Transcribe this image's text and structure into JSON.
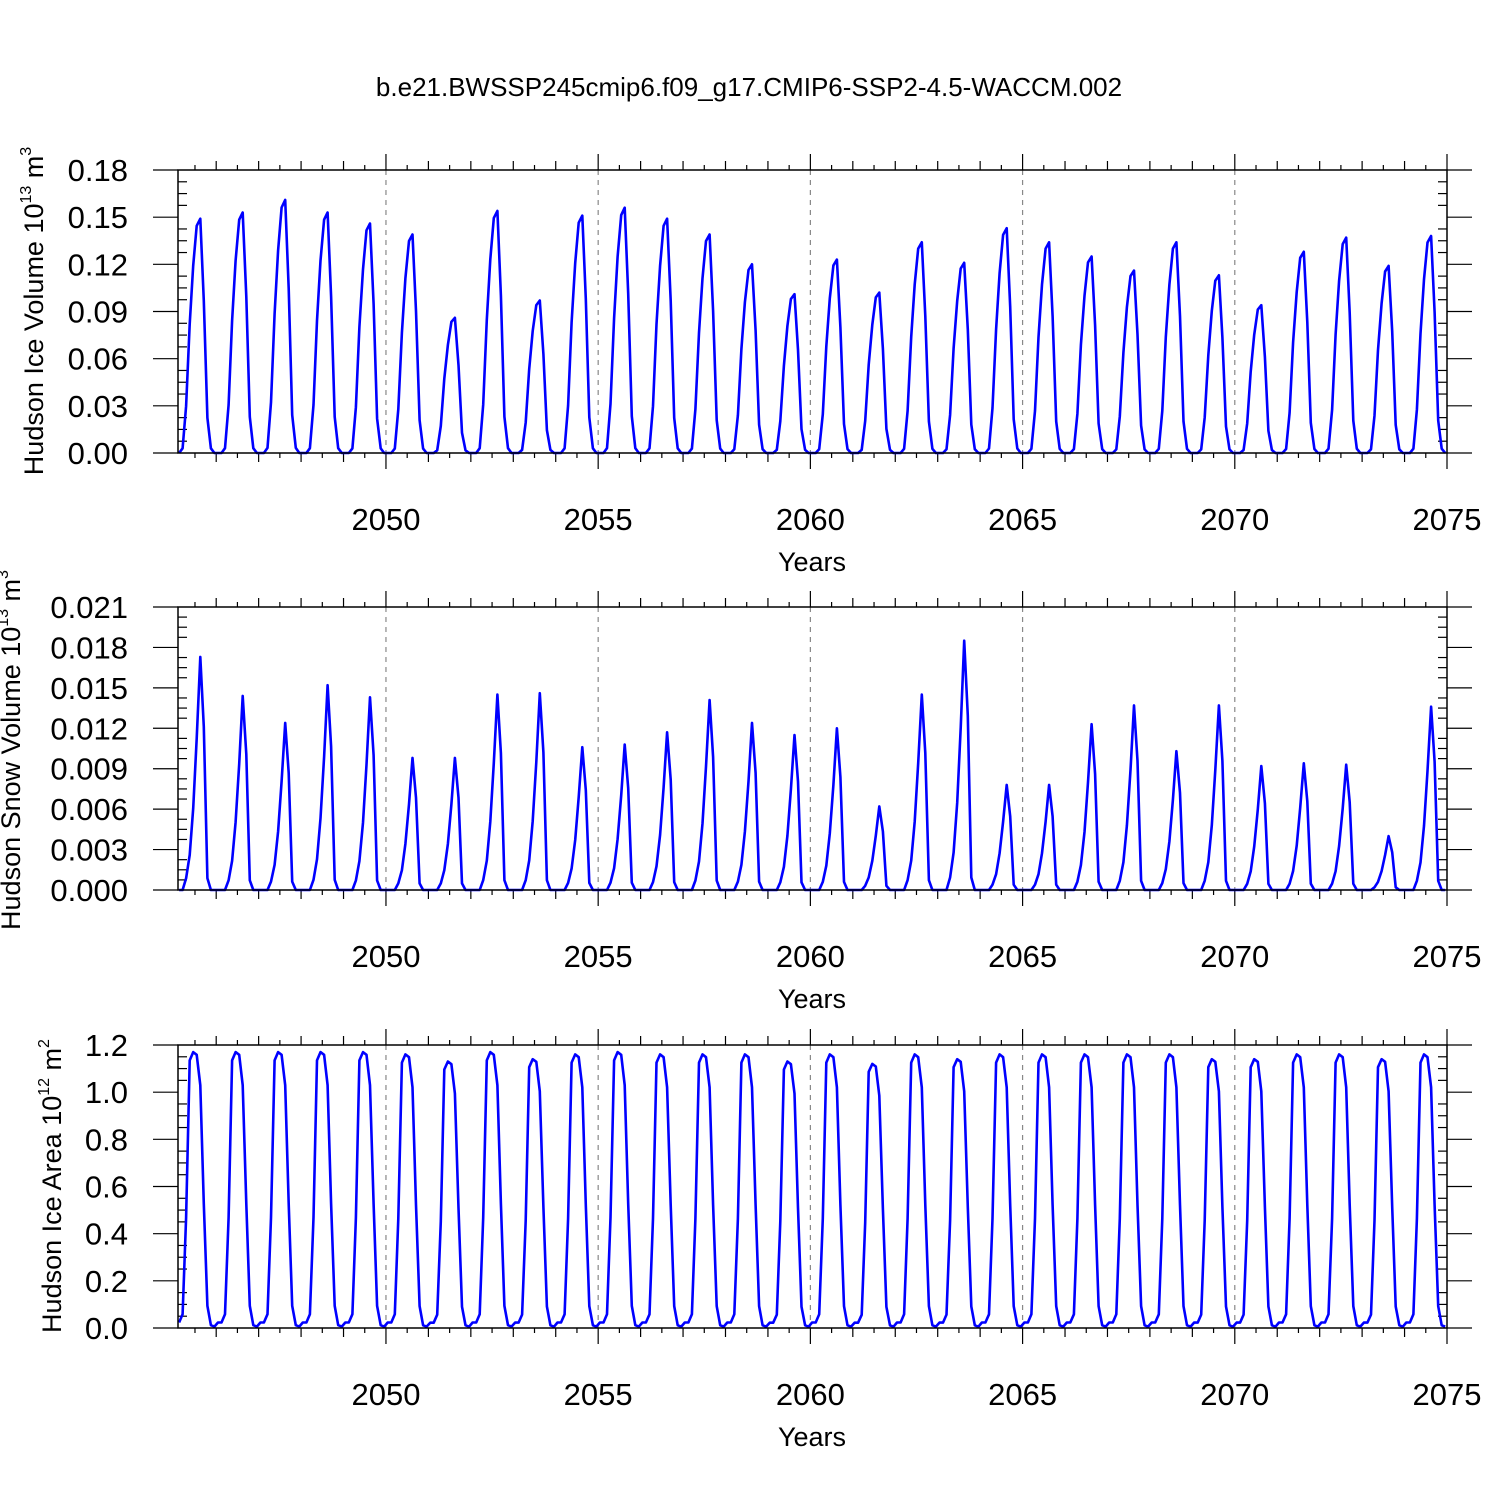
{
  "figure": {
    "title": "b.e21.BWSSP245cmip6.f09_g17.CMIP6-SSP2-4.5-WACCM.002",
    "line_color": "#0000ff"
  },
  "chart_data": [
    {
      "type": "line",
      "ylabel_main": "Hudson Ice Volume 10",
      "ylabel_exp": "13",
      "ylabel_unit": " m",
      "ylabel_unit_exp": "3",
      "xlabel": "Years",
      "xlim": [
        2045.1,
        2075.0
      ],
      "ylim": [
        0.0,
        0.18
      ],
      "xticks": [
        2050,
        2055,
        2060,
        2065,
        2070,
        2075
      ],
      "yticks": [
        0.0,
        0.03,
        0.06,
        0.09,
        0.12,
        0.15,
        0.18
      ],
      "ytick_labels": [
        "0.00",
        "0.03",
        "0.06",
        "0.09",
        "0.12",
        "0.15",
        "0.18"
      ],
      "grid": "dashed vertical at 5-year ticks",
      "start_year": 2045,
      "peaks": [
        0.149,
        0.153,
        0.161,
        0.153,
        0.146,
        0.139,
        0.086,
        0.154,
        0.097,
        0.151,
        0.156,
        0.149,
        0.139,
        0.12,
        0.101,
        0.123,
        0.102,
        0.134,
        0.121,
        0.143,
        0.134,
        0.125,
        0.116,
        0.134,
        0.113,
        0.094,
        0.128,
        0.137,
        0.119,
        0.138
      ],
      "profile": [
        0.0,
        0.0,
        0.02,
        0.2,
        0.55,
        0.8,
        0.97,
        1.0,
        0.65,
        0.15,
        0.02,
        0.0
      ]
    },
    {
      "type": "line",
      "ylabel_main": "Hudson Snow Volume 10",
      "ylabel_exp": "13",
      "ylabel_unit": " m",
      "ylabel_unit_exp": "3",
      "xlabel": "Years",
      "xlim": [
        2045.1,
        2075.0
      ],
      "ylim": [
        0.0,
        0.021
      ],
      "xticks": [
        2050,
        2055,
        2060,
        2065,
        2070,
        2075
      ],
      "yticks": [
        0.0,
        0.003,
        0.006,
        0.009,
        0.012,
        0.015,
        0.018,
        0.021
      ],
      "ytick_labels": [
        "0.000",
        "0.003",
        "0.006",
        "0.009",
        "0.012",
        "0.015",
        "0.018",
        "0.021"
      ],
      "grid": "dashed vertical at 5-year ticks",
      "start_year": 2045,
      "peaks": [
        0.0173,
        0.0144,
        0.0124,
        0.0152,
        0.0143,
        0.0098,
        0.0098,
        0.0145,
        0.0146,
        0.0106,
        0.0108,
        0.0117,
        0.0141,
        0.0124,
        0.0115,
        0.012,
        0.0062,
        0.0145,
        0.0185,
        0.0078,
        0.0078,
        0.0123,
        0.0137,
        0.0103,
        0.0137,
        0.0092,
        0.0094,
        0.0093,
        0.004,
        0.0136
      ],
      "profile": [
        0.0,
        0.0,
        0.0,
        0.05,
        0.15,
        0.35,
        0.65,
        1.0,
        0.7,
        0.05,
        0.0,
        0.0
      ]
    },
    {
      "type": "line",
      "ylabel_main": "Hudson Ice Area 10",
      "ylabel_exp": "12",
      "ylabel_unit": " m",
      "ylabel_unit_exp": "2",
      "xlabel": "Years",
      "xlim": [
        2045.1,
        2075.0
      ],
      "ylim": [
        0.0,
        1.2
      ],
      "xticks": [
        2050,
        2055,
        2060,
        2065,
        2070,
        2075
      ],
      "yticks": [
        0.0,
        0.2,
        0.4,
        0.6,
        0.8,
        1.0,
        1.2
      ],
      "ytick_labels": [
        "0.0",
        "0.2",
        "0.4",
        "0.6",
        "0.8",
        "1.0",
        "1.2"
      ],
      "grid": "dashed vertical at 5-year ticks",
      "start_year": 2045,
      "peaks": [
        1.17,
        1.17,
        1.17,
        1.17,
        1.17,
        1.16,
        1.13,
        1.17,
        1.14,
        1.16,
        1.17,
        1.16,
        1.16,
        1.16,
        1.13,
        1.16,
        1.12,
        1.16,
        1.14,
        1.16,
        1.16,
        1.16,
        1.16,
        1.16,
        1.14,
        1.14,
        1.16,
        1.16,
        1.14,
        1.16
      ],
      "profile": [
        0.02,
        0.02,
        0.05,
        0.4,
        0.97,
        1.0,
        0.99,
        0.88,
        0.45,
        0.08,
        0.01,
        0.005
      ]
    }
  ]
}
